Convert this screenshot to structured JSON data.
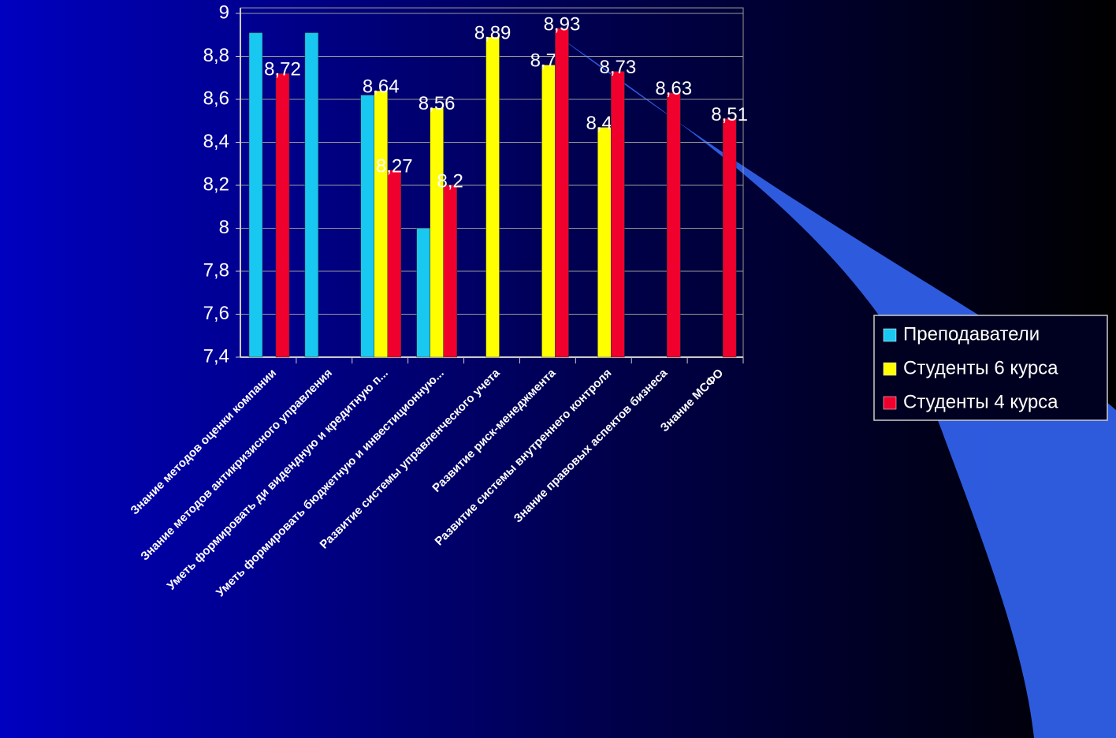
{
  "chart_data": {
    "type": "bar",
    "categories": [
      "Знание методов оценки компании",
      "Знание методов антикризисного управления",
      "Уметь формировать ди видендную и кредитную п...",
      "Уметь формировать бюджетную и инвестиционную...",
      "Развитие системы управленческого учета",
      "Развитие риск-менеджмента",
      "Развитие системы внутреннего контроля",
      "Знание правовых аспектов бизнеса",
      "Знание МСФО"
    ],
    "series": [
      {
        "name": "Преподаватели",
        "color": "#19c8f0",
        "values": [
          8.91,
          8.91,
          8.62,
          8.0,
          null,
          null,
          null,
          null,
          null
        ]
      },
      {
        "name": "Студенты 6 курса",
        "color": "#ffff00",
        "values": [
          null,
          null,
          8.64,
          8.56,
          8.89,
          8.76,
          8.47,
          null,
          null
        ],
        "value_labels": [
          null,
          null,
          "8,64",
          "8,56",
          "8,89",
          "8,76",
          "8,47",
          null,
          null
        ]
      },
      {
        "name": "Студенты 4 курса",
        "color": "#f0002d",
        "values": [
          8.72,
          null,
          8.27,
          8.2,
          null,
          8.93,
          8.73,
          8.63,
          8.51
        ],
        "value_labels": [
          "8,72",
          null,
          "8,27",
          "8,2",
          null,
          "8,93",
          "8,73",
          "8,63",
          "8,51"
        ]
      }
    ],
    "ylim": [
      7.4,
      9
    ],
    "yticks": [
      {
        "value": 7.4,
        "label": "7,4"
      },
      {
        "value": 7.6,
        "label": "7,6"
      },
      {
        "value": 7.8,
        "label": "7,8"
      },
      8,
      {
        "value": 8.2,
        "label": "8,2"
      },
      {
        "value": 8.4,
        "label": "8,4"
      },
      {
        "value": 8.6,
        "label": "8,6"
      },
      {
        "value": 8.8,
        "label": "8,8"
      },
      9
    ],
    "grid": true,
    "legend": "right"
  }
}
